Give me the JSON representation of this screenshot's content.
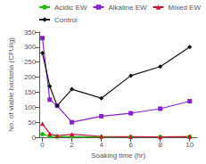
{
  "chart_data": {
    "type": "line",
    "xlabel": "Soaking time (hr)",
    "ylabel": "No. of viable bacteria (CFU/g)",
    "x": [
      0,
      0.5,
      1,
      2,
      4,
      6,
      8,
      10
    ],
    "series": [
      {
        "name": "Acidic EW",
        "color": "#22bb00",
        "marker": "circle",
        "values": [
          10,
          4,
          2,
          2,
          1,
          1,
          1,
          2
        ]
      },
      {
        "name": "Alkaline EW",
        "color": "#8822cc",
        "marker": "square",
        "values": [
          330,
          125,
          105,
          50,
          70,
          80,
          95,
          120
        ]
      },
      {
        "name": "Mixed EW",
        "color": "#cc1133",
        "marker": "triangle",
        "values": [
          45,
          12,
          5,
          10,
          3,
          2,
          1,
          2
        ]
      },
      {
        "name": "Control",
        "color": "#111111",
        "marker": "diamond",
        "values": [
          280,
          170,
          105,
          160,
          130,
          205,
          235,
          300
        ]
      }
    ],
    "xlim": [
      -0.2,
      10.5
    ],
    "ylim": [
      0,
      350
    ],
    "xticks": [
      0,
      2,
      4,
      6,
      8,
      10
    ],
    "yticks": [
      0,
      50,
      100,
      150,
      200,
      250,
      300,
      350
    ],
    "grid": false,
    "legend": "upper right"
  }
}
